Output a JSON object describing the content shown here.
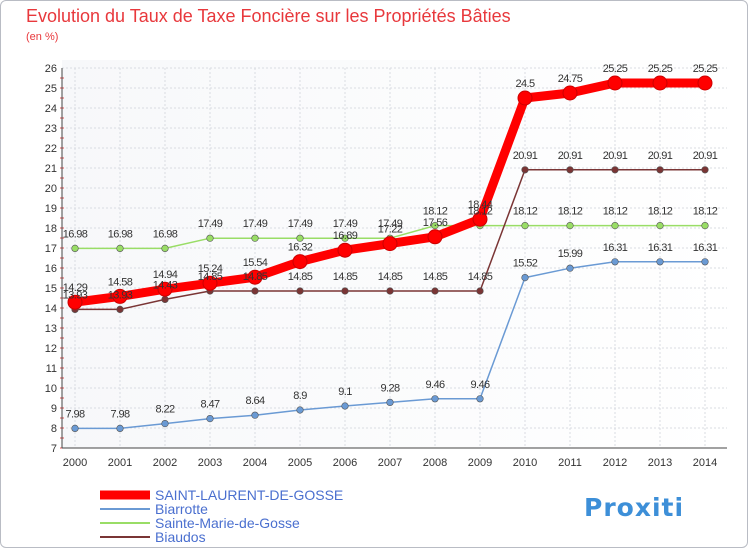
{
  "chart_data": {
    "type": "line",
    "title": "Evolution du Taux de Taxe Foncière sur les Propriétés Bâties",
    "subtitle": "(en %)",
    "x": [
      "2000",
      "2001",
      "2002",
      "2003",
      "2004",
      "2005",
      "2006",
      "2007",
      "2008",
      "2009",
      "2010",
      "2011",
      "2012",
      "2013",
      "2014"
    ],
    "ylim": [
      7,
      26
    ],
    "yticks": [
      7,
      8,
      9,
      10,
      11,
      12,
      13,
      14,
      15,
      16,
      17,
      18,
      19,
      20,
      21,
      22,
      23,
      24,
      25,
      26
    ],
    "grid": true,
    "legend_position": "bottom-left",
    "series": [
      {
        "name": "SAINT-LAURENT-DE-GOSSE",
        "color": "#ff0000",
        "emphasis": true,
        "values": [
          14.29,
          14.58,
          14.94,
          15.24,
          15.54,
          16.32,
          16.89,
          17.22,
          17.56,
          18.44,
          24.5,
          24.75,
          25.25,
          25.25,
          25.25
        ],
        "labels": [
          "14.29",
          "14.58",
          "14.94",
          "15.24",
          "15.54",
          "16.32",
          "16.89",
          "17.22",
          "17.56",
          "18.44",
          "24.5",
          "24.75",
          "25.25",
          "25.25",
          "25.25"
        ]
      },
      {
        "name": "Biarrotte",
        "color": "#6a9ad4",
        "values": [
          7.98,
          7.98,
          8.22,
          8.47,
          8.64,
          8.9,
          9.1,
          9.28,
          9.46,
          9.46,
          15.52,
          15.99,
          16.31,
          16.31,
          16.31
        ],
        "labels": [
          "7.98",
          "7.98",
          "8.22",
          "8.47",
          "8.64",
          "8.9",
          "9.1",
          "9.28",
          "9.46",
          "9.46",
          "15.52",
          "15.99",
          "16.31",
          "16.31",
          "16.31"
        ]
      },
      {
        "name": "Sainte-Marie-de-Gosse",
        "color": "#99dd66",
        "values": [
          16.98,
          16.98,
          16.98,
          17.49,
          17.49,
          17.49,
          17.49,
          17.49,
          18.12,
          18.12,
          18.12,
          18.12,
          18.12,
          18.12,
          18.12
        ],
        "labels": [
          "16.98",
          "16.98",
          "16.98",
          "17.49",
          "17.49",
          "17.49",
          "17.49",
          "17.49",
          "18.12",
          "18.12",
          "18.12",
          "18.12",
          "18.12",
          "18.12",
          "18.12"
        ]
      },
      {
        "name": "Biaudos",
        "color": "#7a3535",
        "values": [
          13.93,
          13.93,
          14.43,
          14.85,
          14.85,
          14.85,
          14.85,
          14.85,
          14.85,
          14.85,
          20.91,
          20.91,
          20.91,
          20.91,
          20.91
        ],
        "labels": [
          "13.93",
          "13.93",
          "14.43",
          "14.85",
          "14.85",
          "14.85",
          "14.85",
          "14.85",
          "14.85",
          "14.85",
          "20.91",
          "20.91",
          "20.91",
          "20.91",
          "20.91"
        ]
      }
    ]
  },
  "logo": {
    "text": "Proxiti"
  }
}
